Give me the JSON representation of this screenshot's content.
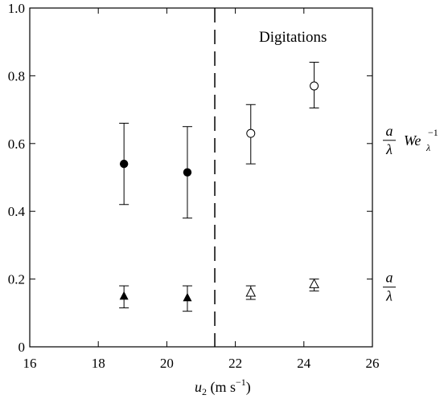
{
  "chart_data": {
    "type": "scatter",
    "xlabel": "u",
    "xlabel_sub": "2",
    "xlabel_units": " (m s",
    "xlabel_units_sup": "−1",
    "xlabel_units_close": ")",
    "ylabel": "",
    "xlim": [
      16,
      26
    ],
    "ylim": [
      0,
      1.0
    ],
    "x_ticks": [
      16,
      18,
      20,
      22,
      24,
      26
    ],
    "y_ticks": [
      0,
      0.2,
      0.4,
      0.6,
      0.8,
      1.0
    ],
    "x_tick_labels": [
      "16",
      "18",
      "20",
      "22",
      "24",
      "26"
    ],
    "y_tick_labels": [
      "0",
      "0.2",
      "0.4",
      "0.6",
      "0.8",
      "1.0"
    ],
    "grid": false,
    "threshold_x": 21.4,
    "region_label": "Digitations",
    "series": [
      {
        "marker": "filled-circle",
        "points": [
          {
            "x": 18.75,
            "y": 0.54,
            "ylow": 0.42,
            "yhigh": 0.66
          },
          {
            "x": 20.6,
            "y": 0.515,
            "ylow": 0.38,
            "yhigh": 0.65
          }
        ]
      },
      {
        "marker": "open-circle",
        "points": [
          {
            "x": 22.45,
            "y": 0.63,
            "ylow": 0.54,
            "yhigh": 0.715
          },
          {
            "x": 24.3,
            "y": 0.77,
            "ylow": 0.705,
            "yhigh": 0.84
          }
        ]
      },
      {
        "marker": "filled-triangle",
        "points": [
          {
            "x": 18.75,
            "y": 0.15,
            "ylow": 0.115,
            "yhigh": 0.18
          },
          {
            "x": 20.6,
            "y": 0.145,
            "ylow": 0.105,
            "yhigh": 0.18
          }
        ]
      },
      {
        "marker": "open-triangle",
        "points": [
          {
            "x": 22.45,
            "y": 0.16,
            "ylow": 0.14,
            "yhigh": 0.18
          },
          {
            "x": 24.3,
            "y": 0.185,
            "ylow": 0.165,
            "yhigh": 0.2
          }
        ]
      }
    ],
    "right_labels": {
      "upper": {
        "numerator": "a",
        "denominator": "λ",
        "we": "We",
        "we_sub": "λ",
        "we_sup": "−1",
        "y": 0.6
      },
      "lower": {
        "numerator": "a",
        "denominator": "λ",
        "y": 0.2
      }
    }
  }
}
